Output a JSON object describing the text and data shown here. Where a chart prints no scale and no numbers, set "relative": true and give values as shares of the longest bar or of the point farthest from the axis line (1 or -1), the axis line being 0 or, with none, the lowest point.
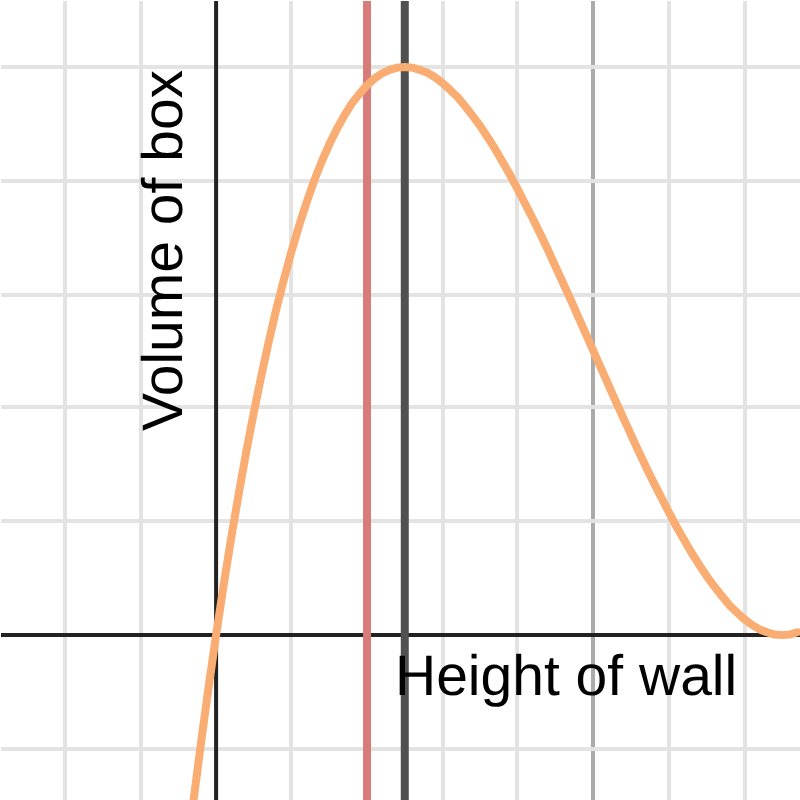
{
  "chart_data": {
    "type": "line",
    "relative": true,
    "xlabel": "Height of wall",
    "ylabel": "Volume of box",
    "categories": [
      null,
      null,
      null,
      null,
      null,
      null,
      null,
      null,
      null,
      null,
      null,
      null,
      null,
      null,
      null,
      null,
      null,
      null,
      null,
      null,
      null,
      null,
      null,
      null,
      null,
      null,
      null,
      null,
      null,
      null,
      null,
      null,
      null,
      null,
      null,
      null,
      null,
      null,
      null,
      null,
      null,
      null,
      null,
      null,
      null,
      null,
      null,
      null,
      null,
      null,
      null,
      null,
      null,
      null,
      null,
      null,
      null,
      null,
      null,
      null,
      null,
      null,
      null,
      null,
      null,
      null,
      null,
      null,
      null,
      null,
      null,
      null,
      null,
      null,
      null,
      null,
      null,
      null,
      null,
      null,
      null,
      null,
      null,
      null,
      null,
      null,
      null,
      null,
      null,
      null,
      null,
      null,
      null,
      null,
      null,
      null,
      null,
      null,
      null,
      null,
      null,
      null,
      null,
      null,
      null,
      null
    ],
    "series": [
      {
        "color": "#f9ad72",
        "values": [
          null,
          null,
          null,
          null,
          null,
          null,
          null,
          null,
          null,
          null,
          null,
          null,
          null,
          null,
          null,
          null,
          null,
          null,
          null,
          null,
          null,
          null,
          null,
          null,
          null,
          -0.292,
          -0.19,
          -0.092,
          0,
          0.088,
          0.171,
          0.249,
          0.323,
          0.392,
          0.457,
          0.518,
          0.575,
          0.627,
          0.676,
          0.721,
          0.762,
          0.8,
          0.834,
          0.864,
          0.891,
          0.915,
          0.936,
          0.953,
          0.968,
          0.98,
          0.989,
          0.995,
          0.999,
          1.0,
          0.999,
          0.995,
          0.99,
          0.982,
          0.972,
          0.96,
          0.947,
          0.931,
          0.914,
          0.896,
          0.876,
          0.855,
          0.832,
          0.809,
          0.784,
          0.758,
          0.732,
          0.705,
          0.677,
          0.648,
          0.619,
          0.59,
          0.56,
          0.53,
          0.5,
          0.47,
          0.44,
          0.41,
          0.381,
          0.352,
          0.323,
          0.295,
          0.268,
          0.242,
          0.216,
          0.191,
          0.168,
          0.145,
          0.124,
          0.104,
          0.086,
          0.069,
          0.053,
          0.04,
          0.028,
          0.018,
          0.01,
          0.005,
          0.001,
          0,
          0.001,
          0.005
        ]
      }
    ],
    "grid": true,
    "line_style": "solid"
  }
}
